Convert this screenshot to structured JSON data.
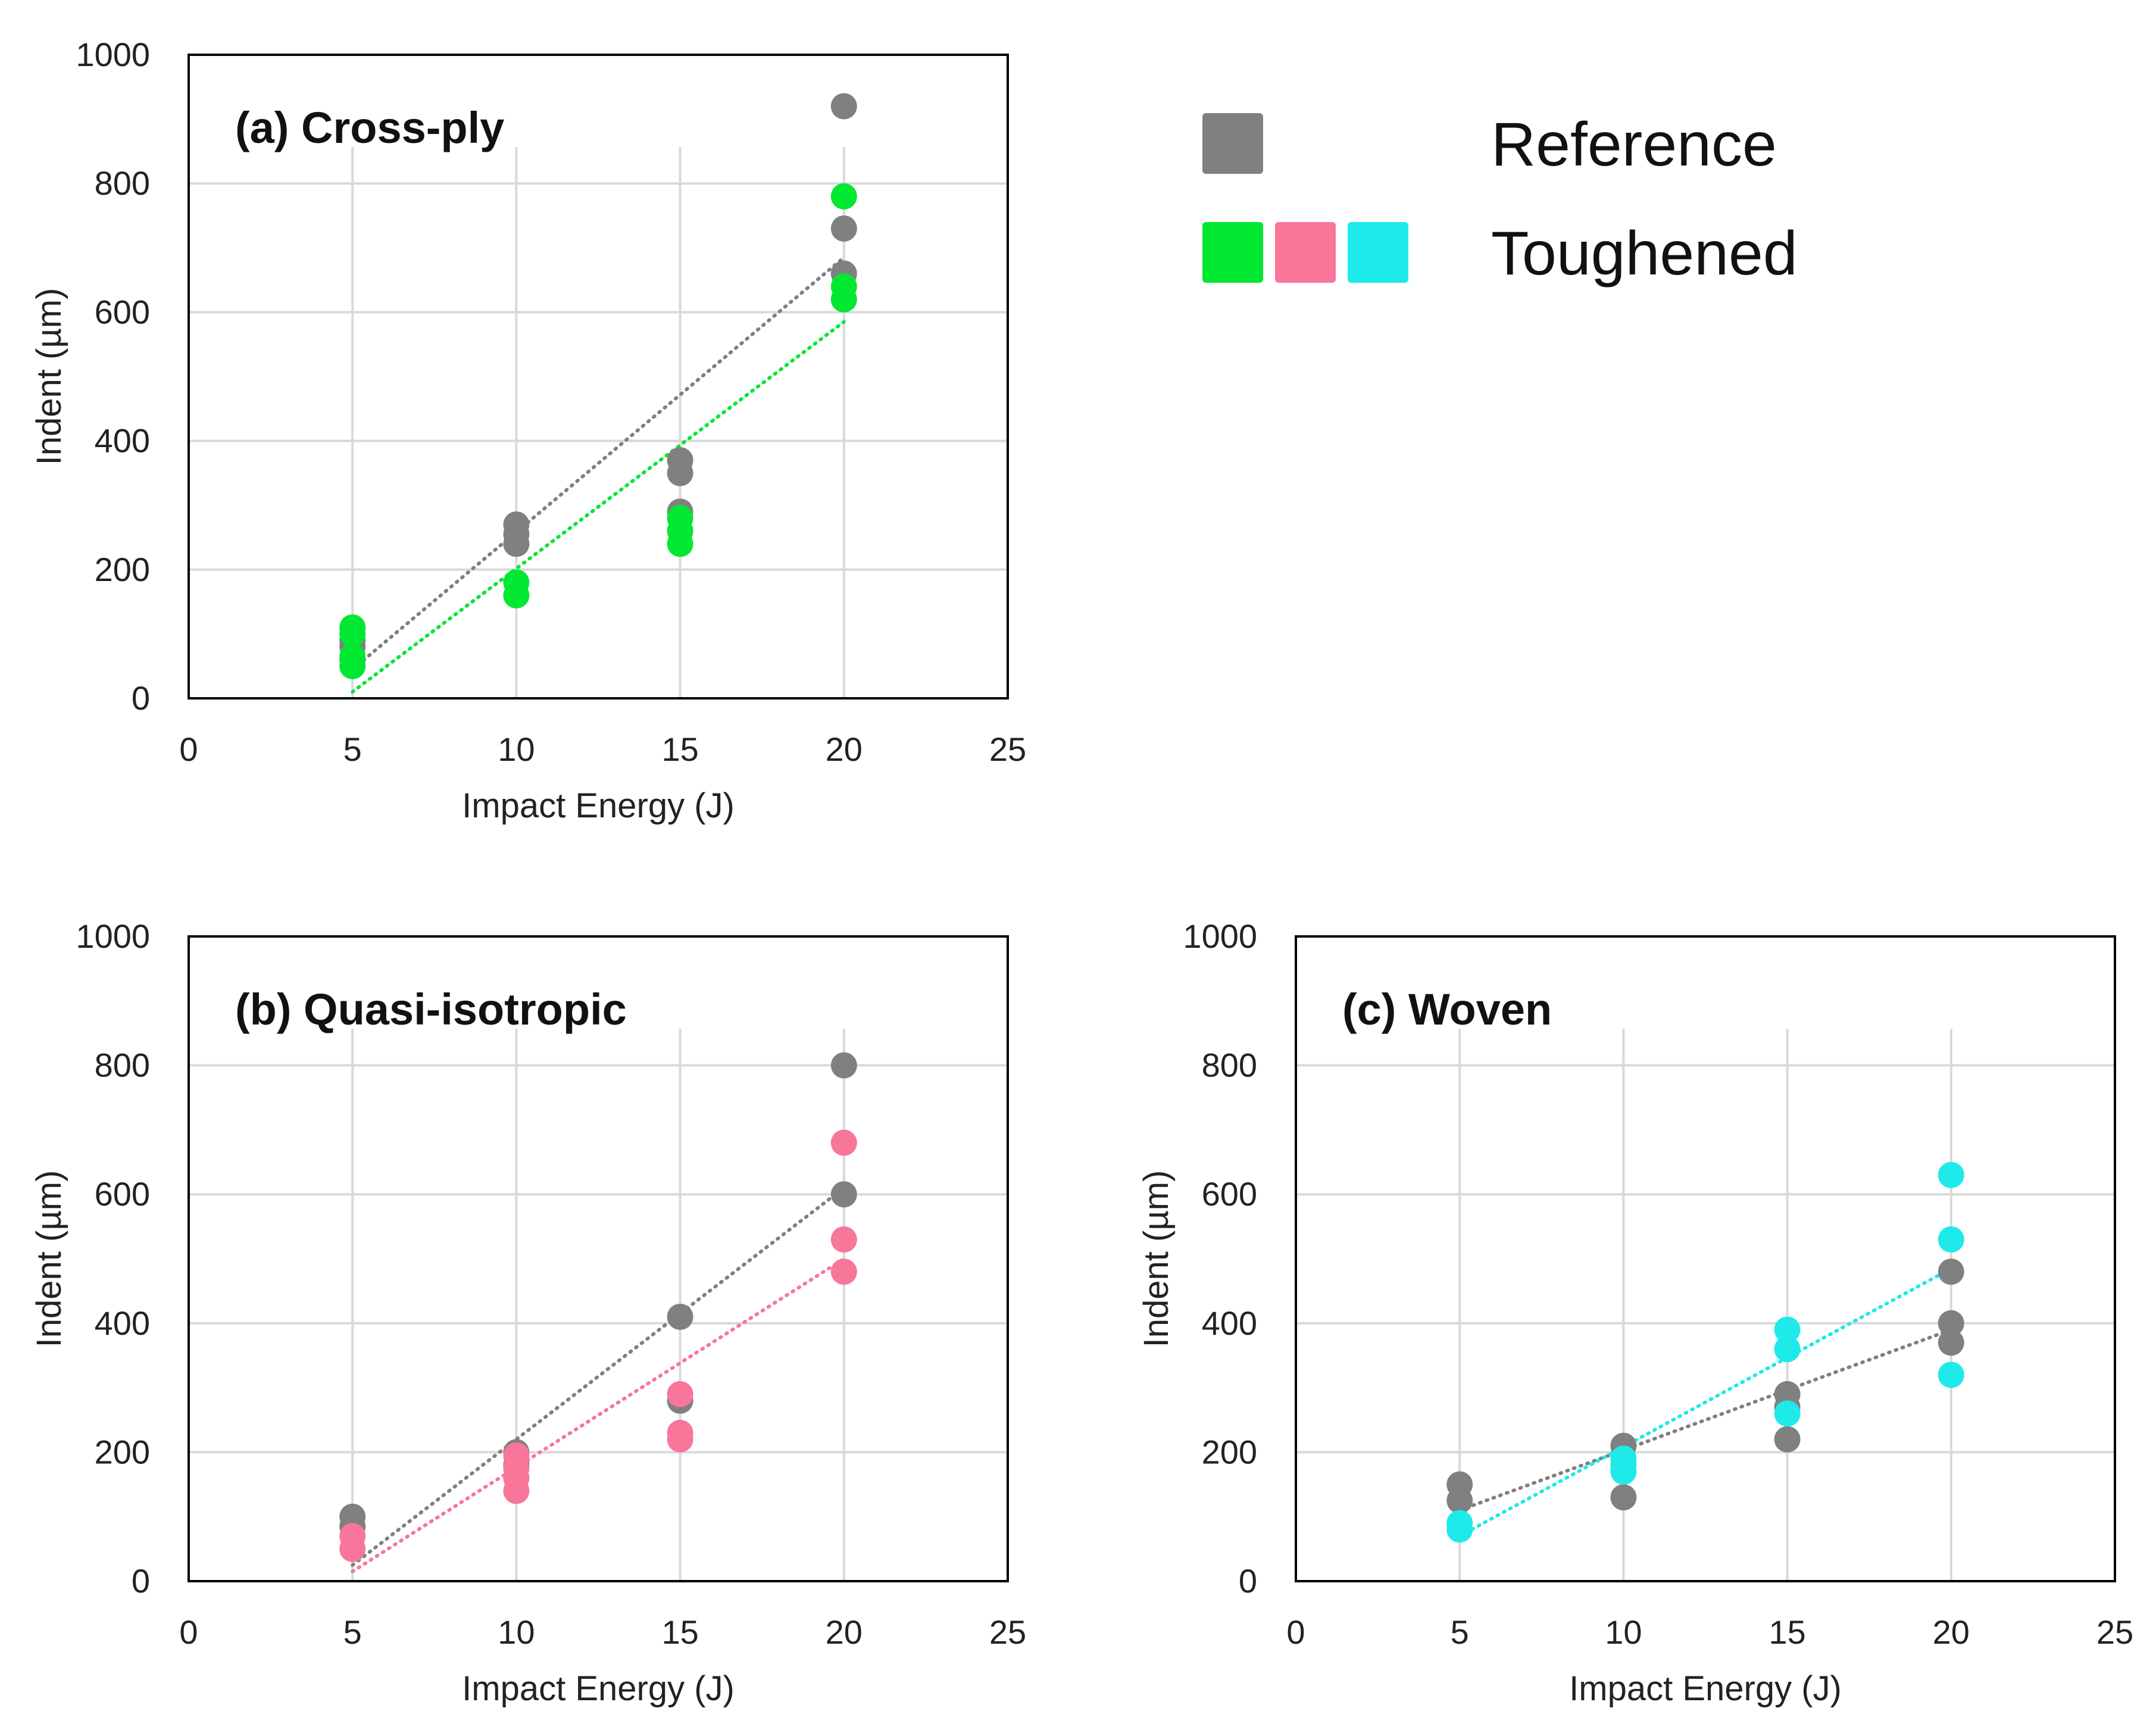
{
  "legend": {
    "reference_label": "Reference",
    "toughened_label": "Toughened",
    "reference_color": "#808080",
    "toughened_colors": [
      "#00E832",
      "#F7769A",
      "#1EEAEA"
    ]
  },
  "chart_data": [
    {
      "type": "scatter",
      "title": "(a) Cross-ply",
      "xlabel": "Impact Energy (J)",
      "ylabel": "Indent (µm)",
      "xlim": [
        0,
        25
      ],
      "ylim": [
        0,
        1000
      ],
      "xticks": [
        "0",
        "5",
        "10",
        "15",
        "20",
        "25"
      ],
      "yticks": [
        "0",
        "200",
        "400",
        "600",
        "800",
        "1000"
      ],
      "grid": true,
      "series": [
        {
          "name": "Reference",
          "color": "#808080",
          "points": [
            [
              5,
              90
            ],
            [
              5,
              80
            ],
            [
              5,
              60
            ],
            [
              10,
              270
            ],
            [
              10,
              255
            ],
            [
              10,
              240
            ],
            [
              15,
              370
            ],
            [
              15,
              350
            ],
            [
              15,
              290
            ],
            [
              20,
              920
            ],
            [
              20,
              730
            ],
            [
              20,
              660
            ]
          ],
          "trendline": [
            [
              5,
              45
            ],
            [
              20,
              685
            ]
          ]
        },
        {
          "name": "Toughened",
          "color": "#00E832",
          "points": [
            [
              5,
              110
            ],
            [
              5,
              100
            ],
            [
              5,
              65
            ],
            [
              5,
              50
            ],
            [
              10,
              180
            ],
            [
              10,
              160
            ],
            [
              15,
              280
            ],
            [
              15,
              260
            ],
            [
              15,
              240
            ],
            [
              20,
              780
            ],
            [
              20,
              640
            ],
            [
              20,
              620
            ]
          ],
          "trendline": [
            [
              5,
              10
            ],
            [
              20,
              585
            ]
          ]
        }
      ]
    },
    {
      "type": "scatter",
      "title": "(b) Quasi-isotropic",
      "xlabel": "Impact Energy (J)",
      "ylabel": "Indent (µm)",
      "xlim": [
        0,
        25
      ],
      "ylim": [
        0,
        1000
      ],
      "xticks": [
        "0",
        "5",
        "10",
        "15",
        "20",
        "25"
      ],
      "yticks": [
        "0",
        "200",
        "400",
        "600",
        "800",
        "1000"
      ],
      "grid": true,
      "series": [
        {
          "name": "Reference",
          "color": "#808080",
          "points": [
            [
              5,
              100
            ],
            [
              5,
              85
            ],
            [
              10,
              200
            ],
            [
              10,
              180
            ],
            [
              15,
              410
            ],
            [
              15,
              280
            ],
            [
              20,
              800
            ],
            [
              20,
              600
            ]
          ],
          "trendline": [
            [
              5,
              25
            ],
            [
              20,
              610
            ]
          ]
        },
        {
          "name": "Toughened",
          "color": "#F7769A",
          "points": [
            [
              5,
              70
            ],
            [
              5,
              50
            ],
            [
              10,
              195
            ],
            [
              10,
              175
            ],
            [
              10,
              160
            ],
            [
              10,
              140
            ],
            [
              15,
              290
            ],
            [
              15,
              230
            ],
            [
              15,
              220
            ],
            [
              20,
              680
            ],
            [
              20,
              530
            ],
            [
              20,
              480
            ]
          ],
          "trendline": [
            [
              5,
              15
            ],
            [
              20,
              500
            ]
          ]
        }
      ]
    },
    {
      "type": "scatter",
      "title": "(c) Woven",
      "xlabel": "Impact Energy (J)",
      "ylabel": "Indent (µm)",
      "xlim": [
        0,
        25
      ],
      "ylim": [
        0,
        1000
      ],
      "xticks": [
        "0",
        "5",
        "10",
        "15",
        "20",
        "25"
      ],
      "yticks": [
        "0",
        "200",
        "400",
        "600",
        "800",
        "1000"
      ],
      "grid": true,
      "series": [
        {
          "name": "Reference",
          "color": "#808080",
          "points": [
            [
              5,
              150
            ],
            [
              5,
              125
            ],
            [
              10,
              210
            ],
            [
              10,
              130
            ],
            [
              15,
              290
            ],
            [
              15,
              270
            ],
            [
              15,
              220
            ],
            [
              20,
              480
            ],
            [
              20,
              400
            ],
            [
              20,
              370
            ]
          ],
          "trendline": [
            [
              5,
              110
            ],
            [
              20,
              390
            ]
          ]
        },
        {
          "name": "Toughened",
          "color": "#1EEAEA",
          "points": [
            [
              5,
              90
            ],
            [
              5,
              80
            ],
            [
              10,
              190
            ],
            [
              10,
              180
            ],
            [
              10,
              170
            ],
            [
              15,
              390
            ],
            [
              15,
              360
            ],
            [
              15,
              260
            ],
            [
              20,
              630
            ],
            [
              20,
              530
            ],
            [
              20,
              320
            ]
          ],
          "trendline": [
            [
              5,
              70
            ],
            [
              20,
              485
            ]
          ]
        }
      ]
    }
  ]
}
